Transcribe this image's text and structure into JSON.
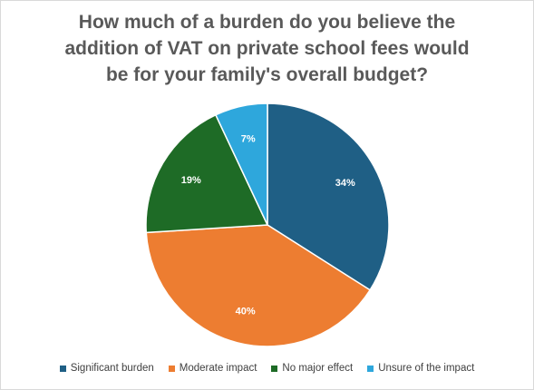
{
  "chart_data": {
    "type": "pie",
    "title_lines": [
      "How much of a burden do you believe the",
      "addition of VAT on private school fees would",
      "be for your family's overall budget?"
    ],
    "categories": [
      "Significant burden",
      "Moderate impact",
      "No major effect",
      "Unsure of the impact"
    ],
    "values": [
      34,
      40,
      19,
      7
    ],
    "labels": [
      "34%",
      "40%",
      "19%",
      "7%"
    ],
    "colors": [
      "#1f5f85",
      "#ed7d31",
      "#1e6b26",
      "#2ea7dc"
    ],
    "start_angle_deg": 0,
    "direction": "clockwise",
    "legend_position": "bottom"
  }
}
